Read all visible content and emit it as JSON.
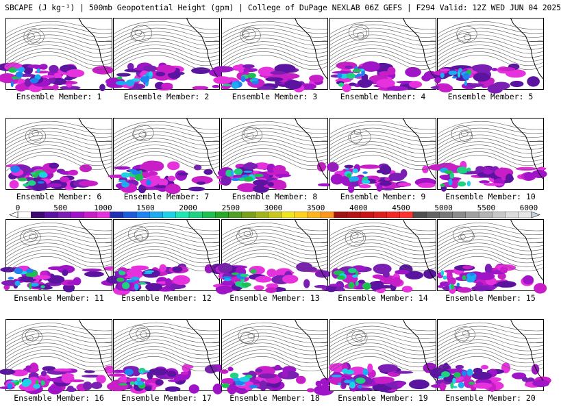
{
  "title": "SBCAPE (J kg⁻¹) | 500mb Geopotential Height (gpm) | College of DuPage NEXLAB 06Z GEFS | F294 Valid: 12Z WED JUN 04 2025",
  "caption_prefix": "Ensemble Member: ",
  "members": [
    "1",
    "2",
    "3",
    "4",
    "5",
    "6",
    "7",
    "8",
    "9",
    "10",
    "11",
    "12",
    "13",
    "14",
    "15",
    "16",
    "17",
    "18",
    "19",
    "20"
  ],
  "colorbar": {
    "ticks": [
      "0",
      "500",
      "1000",
      "1500",
      "2000",
      "2500",
      "3000",
      "3500",
      "4000",
      "4500",
      "5000",
      "5500",
      "6000"
    ],
    "min": 0,
    "max": 6000,
    "colors": [
      "#ffffff",
      "#3c0a6e",
      "#5a14a0",
      "#7a1eb4",
      "#a014c8",
      "#c81ec8",
      "#e632dc",
      "#1e32b4",
      "#1e5adc",
      "#1e82f0",
      "#1eaaf0",
      "#1ed2e6",
      "#1ee6b4",
      "#1ed282",
      "#1ebe50",
      "#28aa28",
      "#50a028",
      "#78a01e",
      "#a0b41e",
      "#c8c81e",
      "#f0e61e",
      "#ffd21e",
      "#ffb41e",
      "#ff961e",
      "#a01414",
      "#b41414",
      "#c81414",
      "#dc1e1e",
      "#f02828",
      "#ff3232",
      "#505050",
      "#646464",
      "#787878",
      "#8c8c8c",
      "#a0a0a0",
      "#b4b4b4",
      "#c8c8c8",
      "#dcdcdc",
      "#e6e6e6"
    ]
  }
}
